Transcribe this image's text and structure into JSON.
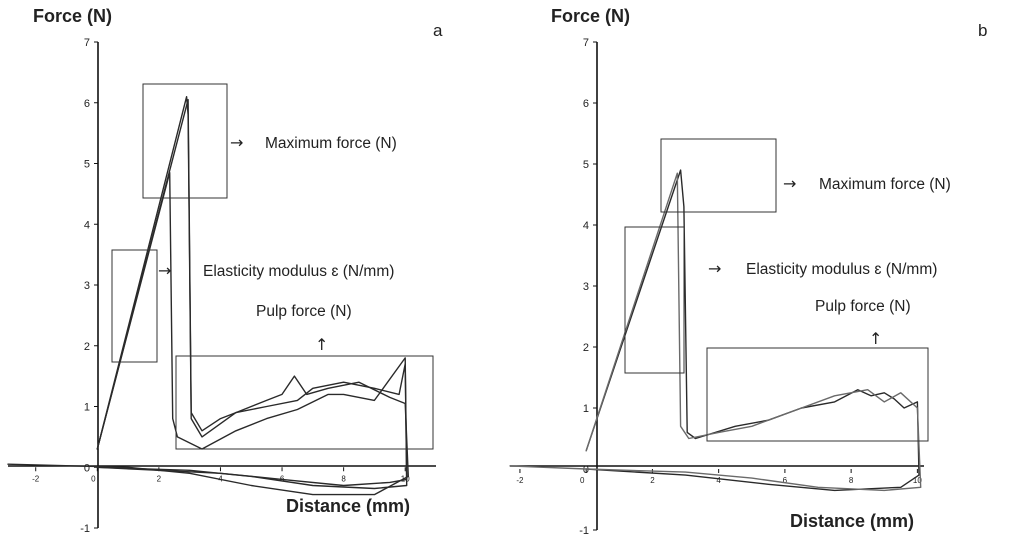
{
  "chart_data": [
    {
      "type": "line",
      "panel_label": "a",
      "ylabel": "Force (N)",
      "xlabel": "Distance (mm)",
      "xlim": [
        -2.9,
        11
      ],
      "ylim": [
        -1,
        7
      ],
      "y_ticks": [
        "-1",
        "0",
        "1",
        "2",
        "3",
        "4",
        "5",
        "6",
        "7"
      ],
      "x_ticks": [
        "-2",
        "0",
        "2",
        "4",
        "6",
        "8",
        "10"
      ],
      "series": [
        {
          "color": "#2a2a2a",
          "points": [
            [
              0,
              0.3
            ],
            [
              2.9,
              6.1
            ],
            [
              2.95,
              5.8
            ],
            [
              3.05,
              0.8
            ],
            [
              3.4,
              0.5
            ],
            [
              4.5,
              0.9
            ],
            [
              5.5,
              1.0
            ],
            [
              6.5,
              1.1
            ],
            [
              7,
              1.3
            ],
            [
              8,
              1.4
            ],
            [
              9,
              1.3
            ],
            [
              9.8,
              1.2
            ],
            [
              10,
              1.7
            ],
            [
              10.05,
              -0.2
            ],
            [
              9.5,
              -0.25
            ],
            [
              8,
              -0.3
            ],
            [
              6,
              -0.2
            ],
            [
              4,
              -0.1
            ],
            [
              2,
              -0.05
            ],
            [
              0,
              0
            ]
          ]
        },
        {
          "color": "#2a2a2a",
          "points": [
            [
              0,
              0.3
            ],
            [
              2.35,
              4.85
            ],
            [
              2.45,
              0.8
            ],
            [
              2.6,
              0.5
            ],
            [
              3.4,
              0.3
            ],
            [
              4.5,
              0.6
            ],
            [
              5.5,
              0.8
            ],
            [
              6.5,
              0.95
            ],
            [
              7.5,
              1.2
            ],
            [
              8,
              1.2
            ],
            [
              9,
              1.1
            ],
            [
              10,
              1.8
            ],
            [
              10.05,
              -0.3
            ],
            [
              9,
              -0.35
            ],
            [
              7,
              -0.3
            ],
            [
              5,
              -0.15
            ],
            [
              3,
              -0.05
            ],
            [
              0,
              0
            ]
          ]
        },
        {
          "color": "#2a2a2a",
          "points": [
            [
              0,
              0.3
            ],
            [
              2.95,
              6.05
            ],
            [
              3.05,
              0.9
            ],
            [
              3.4,
              0.6
            ],
            [
              4,
              0.8
            ],
            [
              4.5,
              0.9
            ],
            [
              5.5,
              1.1
            ],
            [
              6,
              1.2
            ],
            [
              6.4,
              1.5
            ],
            [
              6.8,
              1.2
            ],
            [
              7.5,
              1.3
            ],
            [
              8.5,
              1.4
            ],
            [
              9.5,
              1.15
            ],
            [
              10,
              1.05
            ],
            [
              10.1,
              -0.15
            ],
            [
              9,
              -0.45
            ],
            [
              7,
              -0.45
            ],
            [
              5,
              -0.3
            ],
            [
              3,
              -0.1
            ],
            [
              1,
              0
            ],
            [
              -2.9,
              0.05
            ]
          ]
        }
      ],
      "annotations": {
        "max_force": "Maximum force (N)",
        "elasticity": "Elasticity modulus ɛ (N/mm)",
        "pulp": "Pulp force (N)"
      }
    },
    {
      "type": "line",
      "panel_label": "b",
      "ylabel": "Force (N)",
      "xlabel": "Distance (mm)",
      "xlim": [
        -2.3,
        10.2
      ],
      "ylim": [
        -1,
        7
      ],
      "y_ticks": [
        "-1",
        "0",
        "1",
        "2",
        "3",
        "4",
        "5",
        "6",
        "7"
      ],
      "x_ticks": [
        "-2",
        "0",
        "2",
        "4",
        "6",
        "8",
        "10"
      ],
      "series": [
        {
          "color": "#2a2a2a",
          "points": [
            [
              0,
              0.3
            ],
            [
              2.85,
              4.9
            ],
            [
              2.95,
              4.3
            ],
            [
              3.05,
              0.6
            ],
            [
              3.3,
              0.5
            ],
            [
              4.5,
              0.7
            ],
            [
              5.5,
              0.8
            ],
            [
              6.5,
              1.0
            ],
            [
              7.5,
              1.1
            ],
            [
              8.2,
              1.3
            ],
            [
              8.6,
              1.2
            ],
            [
              9,
              1.25
            ],
            [
              9.3,
              1.15
            ],
            [
              9.6,
              1.0
            ],
            [
              10,
              1.1
            ],
            [
              10.05,
              -0.1
            ],
            [
              9.5,
              -0.3
            ],
            [
              7.5,
              -0.35
            ],
            [
              5.5,
              -0.25
            ],
            [
              3,
              -0.1
            ],
            [
              0,
              0
            ]
          ]
        },
        {
          "color": "#6a6a6a",
          "points": [
            [
              0,
              0.3
            ],
            [
              2.75,
              4.85
            ],
            [
              2.85,
              0.7
            ],
            [
              3.1,
              0.5
            ],
            [
              4,
              0.6
            ],
            [
              5,
              0.7
            ],
            [
              6,
              0.9
            ],
            [
              7.5,
              1.2
            ],
            [
              8.5,
              1.3
            ],
            [
              9,
              1.1
            ],
            [
              9.5,
              1.25
            ],
            [
              10,
              1.0
            ],
            [
              10.1,
              -0.3
            ],
            [
              9,
              -0.35
            ],
            [
              7,
              -0.3
            ],
            [
              5,
              -0.15
            ],
            [
              3,
              -0.05
            ],
            [
              0,
              0
            ],
            [
              -2.3,
              0.05
            ]
          ]
        }
      ],
      "annotations": {
        "max_force": "Maximum force (N)",
        "elasticity": "Elasticity modulus ɛ (N/mm)",
        "pulp": "Pulp force (N)"
      }
    }
  ]
}
